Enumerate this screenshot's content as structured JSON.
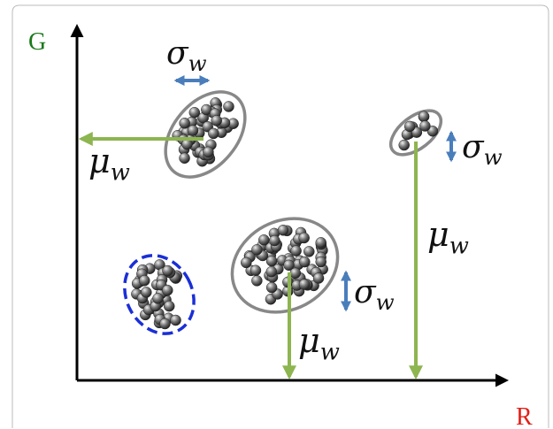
{
  "axes": {
    "y_label": "G",
    "x_label": "R"
  },
  "clusters": [
    {
      "sigma": {
        "symbol": "σ",
        "subscript": "w"
      },
      "mu": {
        "symbol": "μ",
        "subscript": "w"
      }
    },
    {
      "sigma": {
        "symbol": "σ",
        "subscript": "w"
      },
      "mu": {
        "symbol": "μ",
        "subscript": "w"
      }
    },
    {
      "sigma": {
        "symbol": "σ",
        "subscript": "w"
      },
      "mu": {
        "symbol": "μ",
        "subscript": "w"
      }
    }
  ]
}
